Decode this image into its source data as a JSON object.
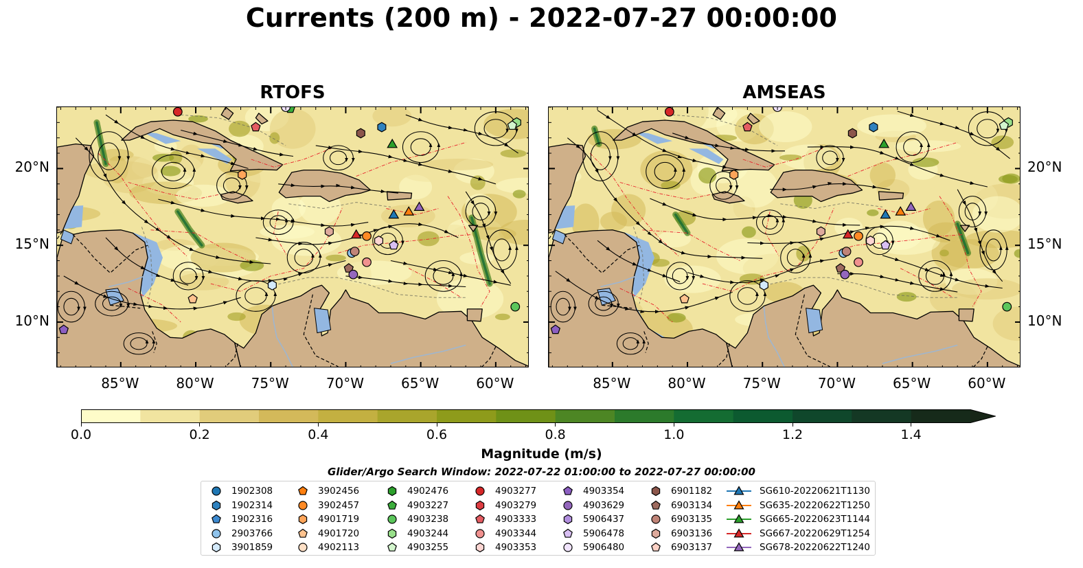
{
  "title": "Currents (200 m) - 2022-07-27 00:00:00",
  "panels": [
    {
      "title": "RTOFS"
    },
    {
      "title": "AMSEAS"
    }
  ],
  "map_extent": {
    "lon": [
      -89.25,
      -57.75
    ],
    "lat": [
      7.0,
      24.0
    ]
  },
  "x_ticks": [
    {
      "lon": -85,
      "label": "85°W"
    },
    {
      "lon": -80,
      "label": "80°W"
    },
    {
      "lon": -75,
      "label": "75°W"
    },
    {
      "lon": -70,
      "label": "70°W"
    },
    {
      "lon": -65,
      "label": "65°W"
    },
    {
      "lon": -60,
      "label": "60°W"
    }
  ],
  "y_ticks": [
    {
      "lat": 20,
      "label": "20°N"
    },
    {
      "lat": 15,
      "label": "15°N"
    },
    {
      "lat": 10,
      "label": "10°N"
    }
  ],
  "colorbar": {
    "label": "Magnitude (m/s)",
    "range": [
      0.0,
      1.5
    ],
    "extend": "max",
    "ticks": [
      {
        "value": 0.0,
        "label": "0.0"
      },
      {
        "value": 0.2,
        "label": "0.2"
      },
      {
        "value": 0.4,
        "label": "0.4"
      },
      {
        "value": 0.6,
        "label": "0.6"
      },
      {
        "value": 0.8,
        "label": "0.8"
      },
      {
        "value": 1.0,
        "label": "1.0"
      },
      {
        "value": 1.2,
        "label": "1.2"
      },
      {
        "value": 1.4,
        "label": "1.4"
      }
    ],
    "colors": [
      "#fefcc9",
      "#f1e4a0",
      "#e1cc7b",
      "#d3b95a",
      "#c3b041",
      "#a9a52c",
      "#8e9b1b",
      "#6f9117",
      "#4d8624",
      "#2c7a2b",
      "#146c32",
      "#0c5a30",
      "#0f472b",
      "#143824",
      "#162a1a"
    ],
    "extend_color": "#172617"
  },
  "search_window": "Glider/Argo Search Window: 2022-07-22 01:00:00 to 2022-07-27 00:00:00",
  "legend": {
    "columns": [
      [
        {
          "id": "1902308",
          "marker": "circle",
          "color": "#1f77b4"
        },
        {
          "id": "1902314",
          "marker": "hexagon",
          "color": "#2f82bf"
        },
        {
          "id": "1902316",
          "marker": "pentagon",
          "color": "#3d8ad0"
        },
        {
          "id": "2903766",
          "marker": "circle",
          "color": "#8fc3ec"
        },
        {
          "id": "3901859",
          "marker": "hexagon",
          "color": "#d4eafb"
        }
      ],
      [
        {
          "id": "3902456",
          "marker": "pentagon",
          "color": "#ff7f0e"
        },
        {
          "id": "3902457",
          "marker": "circle",
          "color": "#ff8a25"
        },
        {
          "id": "4901719",
          "marker": "hexagon",
          "color": "#ffa55a"
        },
        {
          "id": "4901720",
          "marker": "pentagon",
          "color": "#ffc38f"
        },
        {
          "id": "4902113",
          "marker": "circle",
          "color": "#ffe0c6"
        }
      ],
      [
        {
          "id": "4902476",
          "marker": "hexagon",
          "color": "#2ca02c"
        },
        {
          "id": "4903227",
          "marker": "pentagon",
          "color": "#3cae3c"
        },
        {
          "id": "4903238",
          "marker": "circle",
          "color": "#5bc65b"
        },
        {
          "id": "4903244",
          "marker": "hexagon",
          "color": "#98df8a"
        },
        {
          "id": "4903255",
          "marker": "pentagon",
          "color": "#d3f5cd"
        }
      ],
      [
        {
          "id": "4903277",
          "marker": "circle",
          "color": "#d62728"
        },
        {
          "id": "4903279",
          "marker": "hexagon",
          "color": "#dd3c42"
        },
        {
          "id": "4903333",
          "marker": "pentagon",
          "color": "#e45c62"
        },
        {
          "id": "4903344",
          "marker": "circle",
          "color": "#f0918f"
        },
        {
          "id": "4903353",
          "marker": "hexagon",
          "color": "#fcd5d2"
        }
      ],
      [
        {
          "id": "4903354",
          "marker": "pentagon",
          "color": "#8c5fc2"
        },
        {
          "id": "4903629",
          "marker": "circle",
          "color": "#9467bd"
        },
        {
          "id": "5906437",
          "marker": "hexagon",
          "color": "#b18ede"
        },
        {
          "id": "5906478",
          "marker": "pentagon",
          "color": "#d8bff3"
        },
        {
          "id": "5906480",
          "marker": "circle",
          "color": "#f1e4fd"
        }
      ],
      [
        {
          "id": "6901182",
          "marker": "hexagon",
          "color": "#8c564b"
        },
        {
          "id": "6903134",
          "marker": "pentagon",
          "color": "#9e6b5f"
        },
        {
          "id": "6903135",
          "marker": "circle",
          "color": "#c08478"
        },
        {
          "id": "6903136",
          "marker": "hexagon",
          "color": "#deaa9c"
        },
        {
          "id": "6903137",
          "marker": "pentagon",
          "color": "#fbd1c5"
        }
      ],
      [
        {
          "id": "SG610-20220621T1130",
          "marker": "triangle-line",
          "color": "#1f77b4"
        },
        {
          "id": "SG635-20220622T1250",
          "marker": "triangle-line",
          "color": "#ff7f0e"
        },
        {
          "id": "SG665-20220623T1144",
          "marker": "triangle-line",
          "color": "#2ca02c"
        },
        {
          "id": "SG667-20220629T1254",
          "marker": "triangle-line",
          "color": "#d62728"
        },
        {
          "id": "SG678-20220622T1240",
          "marker": "triangle-line",
          "color": "#9467bd"
        }
      ]
    ]
  },
  "map_markers": {
    "rtofs": [
      {
        "id": "4903277",
        "lon": -81.2,
        "lat": 23.7
      },
      {
        "id": "4903333",
        "lon": -76.0,
        "lat": 22.7
      },
      {
        "id": "6901182",
        "lon": -69.0,
        "lat": 22.3
      },
      {
        "id": "1902314",
        "lon": -67.6,
        "lat": 22.7
      },
      {
        "id": "4903227",
        "lon": -73.7,
        "lat": 23.9
      },
      {
        "id": "4903244",
        "lon": -58.6,
        "lat": 23.0
      },
      {
        "id": "4903255",
        "lon": -58.9,
        "lat": 22.8
      },
      {
        "id": "SG665-20220623T1144",
        "lon": -66.9,
        "lat": 21.6
      },
      {
        "id": "4901719",
        "lon": -76.9,
        "lat": 19.6
      },
      {
        "id": "SG610-20220621T1130",
        "lon": -66.8,
        "lat": 17.0
      },
      {
        "id": "SG635-20220622T1250",
        "lon": -65.8,
        "lat": 17.2
      },
      {
        "id": "SG678-20220622T1240",
        "lon": -65.1,
        "lat": 17.5
      },
      {
        "id": "6903136",
        "lon": -71.1,
        "lat": 15.9
      },
      {
        "id": "SG667-20220629T1254",
        "lon": -69.3,
        "lat": 15.7
      },
      {
        "id": "3902457",
        "lon": -68.6,
        "lat": 15.6
      },
      {
        "id": "4903353",
        "lon": -67.8,
        "lat": 15.3
      },
      {
        "id": "5906478",
        "lon": -66.8,
        "lat": 15.0
      },
      {
        "id": "2903766",
        "lon": -69.6,
        "lat": 14.5
      },
      {
        "id": "6903135",
        "lon": -69.4,
        "lat": 14.6
      },
      {
        "id": "4903344",
        "lon": -68.6,
        "lat": 13.9
      },
      {
        "id": "6903134",
        "lon": -69.8,
        "lat": 13.5
      },
      {
        "id": "4903629",
        "lon": -69.5,
        "lat": 13.1
      },
      {
        "id": "3901859",
        "lon": -74.9,
        "lat": 12.4
      },
      {
        "id": "4901720",
        "lon": -80.2,
        "lat": 11.5
      },
      {
        "id": "4903238",
        "lon": -58.7,
        "lat": 11.0
      },
      {
        "id": "5906480",
        "lon": -74.0,
        "lat": 24.0
      },
      {
        "id": "4903354",
        "lon": -88.8,
        "lat": 9.5
      }
    ],
    "amseas": [
      {
        "id": "4903277",
        "lon": -81.2,
        "lat": 23.7
      },
      {
        "id": "4903333",
        "lon": -76.0,
        "lat": 22.7
      },
      {
        "id": "6901182",
        "lon": -69.0,
        "lat": 22.3
      },
      {
        "id": "1902314",
        "lon": -67.6,
        "lat": 22.7
      },
      {
        "id": "4903244",
        "lon": -58.6,
        "lat": 23.0
      },
      {
        "id": "4903255",
        "lon": -58.9,
        "lat": 22.8
      },
      {
        "id": "SG665-20220623T1144",
        "lon": -66.9,
        "lat": 21.6
      },
      {
        "id": "4901719",
        "lon": -76.9,
        "lat": 19.6
      },
      {
        "id": "SG610-20220621T1130",
        "lon": -66.8,
        "lat": 17.0
      },
      {
        "id": "SG635-20220622T1250",
        "lon": -65.8,
        "lat": 17.2
      },
      {
        "id": "SG678-20220622T1240",
        "lon": -65.1,
        "lat": 17.5
      },
      {
        "id": "6903136",
        "lon": -71.1,
        "lat": 15.9
      },
      {
        "id": "SG667-20220629T1254",
        "lon": -69.3,
        "lat": 15.7
      },
      {
        "id": "3902457",
        "lon": -68.6,
        "lat": 15.6
      },
      {
        "id": "4903353",
        "lon": -67.8,
        "lat": 15.3
      },
      {
        "id": "5906478",
        "lon": -66.8,
        "lat": 15.0
      },
      {
        "id": "2903766",
        "lon": -69.6,
        "lat": 14.5
      },
      {
        "id": "6903135",
        "lon": -69.4,
        "lat": 14.6
      },
      {
        "id": "4903344",
        "lon": -68.6,
        "lat": 13.9
      },
      {
        "id": "6903134",
        "lon": -69.8,
        "lat": 13.5
      },
      {
        "id": "4903629",
        "lon": -69.5,
        "lat": 13.1
      },
      {
        "id": "3901859",
        "lon": -74.9,
        "lat": 12.4
      },
      {
        "id": "4901720",
        "lon": -80.2,
        "lat": 11.5
      },
      {
        "id": "4903238",
        "lon": -58.7,
        "lat": 11.0
      },
      {
        "id": "5906480",
        "lon": -74.0,
        "lat": 24.0
      },
      {
        "id": "4903354",
        "lon": -88.8,
        "lat": 9.5
      }
    ]
  },
  "style_colors": {
    "land": "#cfb089",
    "shallow_water": "#93b7e1",
    "coastline": "#000000",
    "eez_boundary": "#e8202a",
    "stream_lines": "#000000",
    "river": "#9fb6cf"
  }
}
